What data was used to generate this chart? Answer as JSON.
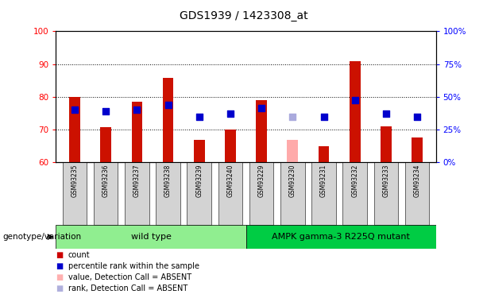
{
  "title": "GDS1939 / 1423308_at",
  "samples": [
    "GSM93235",
    "GSM93236",
    "GSM93237",
    "GSM93238",
    "GSM93239",
    "GSM93240",
    "GSM93229",
    "GSM93230",
    "GSM93231",
    "GSM93232",
    "GSM93233",
    "GSM93234"
  ],
  "red_bar_values": [
    80.0,
    70.8,
    78.5,
    85.8,
    67.0,
    70.0,
    79.0,
    null,
    65.0,
    91.0,
    71.0,
    67.5
  ],
  "pink_bar_values": [
    null,
    null,
    null,
    null,
    null,
    null,
    null,
    67.0,
    null,
    null,
    null,
    null
  ],
  "blue_dot_values": [
    76.0,
    75.5,
    76.0,
    77.5,
    74.0,
    75.0,
    76.5,
    null,
    74.0,
    79.0,
    75.0,
    74.0
  ],
  "lavender_dot_values": [
    null,
    null,
    null,
    null,
    null,
    null,
    null,
    74.0,
    null,
    null,
    null,
    null
  ],
  "y_min": 60,
  "y_max": 100,
  "y_ticks_left": [
    60,
    70,
    80,
    90,
    100
  ],
  "wild_type_range": [
    0,
    6
  ],
  "mutant_range": [
    6,
    12
  ],
  "wild_type_label": "wild type",
  "mutant_label": "AMPK gamma-3 R225Q mutant",
  "genotype_label": "genotype/variation",
  "legend_items": [
    {
      "label": "count",
      "color": "#cc0000"
    },
    {
      "label": "percentile rank within the sample",
      "color": "#0000cc"
    },
    {
      "label": "value, Detection Call = ABSENT",
      "color": "#ffb0b0"
    },
    {
      "label": "rank, Detection Call = ABSENT",
      "color": "#b0b0dd"
    }
  ],
  "bar_width": 0.35,
  "dot_size": 35,
  "bar_color": "#cc1100",
  "pink_color": "#ffaaaa",
  "blue_color": "#0000cc",
  "lavender_color": "#aaaadd",
  "wild_type_bg": "#90EE90",
  "mutant_bg": "#00CC44",
  "tick_label_bg": "#d3d3d3",
  "background_color": "#ffffff"
}
